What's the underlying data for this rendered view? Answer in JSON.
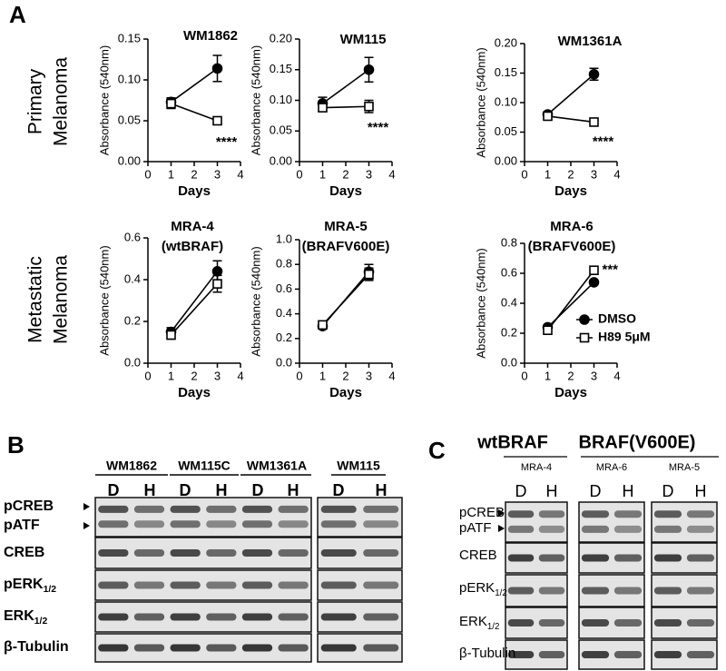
{
  "panel_labels": [
    "A",
    "B",
    "C"
  ],
  "row_labels": [
    [
      "Primary",
      "Melanoma"
    ],
    [
      "Metastatic",
      "Melanoma"
    ]
  ],
  "chart_data": [
    {
      "type": "line",
      "title": "WM1862",
      "xlabel": "Days",
      "ylabel": "Absorbance (540nm)",
      "x": [
        1,
        3
      ],
      "xlim": [
        0,
        4
      ],
      "xticks": [
        0,
        1,
        2,
        3,
        4
      ],
      "ylim": [
        0,
        0.15
      ],
      "yticks": [
        {
          "value": 0,
          "label": "0.00"
        },
        0.05,
        {
          "value": 0.1,
          "label": "0.10"
        },
        0.15
      ],
      "series": [
        {
          "name": "DMSO",
          "color": "#000000",
          "marker": "circle",
          "marker_fill": "#000000",
          "values": [
            0.073,
            0.114
          ],
          "errors": [
            0.005,
            0.016
          ]
        },
        {
          "name": "H89 5μM",
          "color": "#000000",
          "marker": "square",
          "marker_fill": "#ffffff",
          "values": [
            0.071,
            0.05
          ],
          "errors": [
            0.006,
            0.002
          ]
        }
      ],
      "annotation": "****"
    },
    {
      "type": "line",
      "title": "WM115",
      "xlabel": "Days",
      "ylabel": "Absorbance (540nm)",
      "x": [
        1,
        3
      ],
      "xlim": [
        0,
        4
      ],
      "xticks": [
        0,
        1,
        2,
        3,
        4
      ],
      "ylim": [
        0,
        0.2
      ],
      "yticks": [
        {
          "value": 0,
          "label": "0.00"
        },
        0.05,
        {
          "value": 0.1,
          "label": "0.10"
        },
        0.15,
        {
          "value": 0.2,
          "label": "0.20"
        }
      ],
      "series": [
        {
          "name": "DMSO",
          "color": "#000000",
          "marker": "circle",
          "marker_fill": "#000000",
          "values": [
            0.095,
            0.15
          ],
          "errors": [
            0.01,
            0.02
          ]
        },
        {
          "name": "H89 5μM",
          "color": "#000000",
          "marker": "square",
          "marker_fill": "#ffffff",
          "values": [
            0.088,
            0.09
          ],
          "errors": [
            0.005,
            0.01
          ]
        }
      ],
      "annotation": "****"
    },
    {
      "type": "line",
      "title": "WM1361A",
      "xlabel": "Days",
      "ylabel": "Absorbance (540nm)",
      "x": [
        1,
        3
      ],
      "xlim": [
        0,
        4
      ],
      "xticks": [
        0,
        1,
        2,
        3,
        4
      ],
      "ylim": [
        0,
        0.2
      ],
      "yticks": [
        {
          "value": 0,
          "label": "0.00"
        },
        0.05,
        {
          "value": 0.1,
          "label": "0.10"
        },
        0.15,
        {
          "value": 0.2,
          "label": "0.20"
        }
      ],
      "series": [
        {
          "name": "DMSO",
          "color": "#000000",
          "marker": "circle",
          "marker_fill": "#000000",
          "values": [
            0.08,
            0.148
          ],
          "errors": [
            0.004,
            0.01
          ]
        },
        {
          "name": "H89 5μM",
          "color": "#000000",
          "marker": "square",
          "marker_fill": "#ffffff",
          "values": [
            0.077,
            0.067
          ],
          "errors": [
            0.003,
            0.003
          ]
        }
      ],
      "annotation": "****"
    },
    {
      "type": "line",
      "title": "MRA-4",
      "subtitle": "(wtBRAF)",
      "xlabel": "Days",
      "ylabel": "Absorbance (540nm)",
      "x": [
        1,
        3
      ],
      "xlim": [
        0,
        4
      ],
      "xticks": [
        0,
        1,
        2,
        3,
        4
      ],
      "ylim": [
        0,
        0.6
      ],
      "yticks": [
        {
          "value": 0,
          "label": "0.0"
        },
        0.2,
        0.4,
        0.6
      ],
      "series": [
        {
          "name": "DMSO",
          "color": "#000000",
          "marker": "circle",
          "marker_fill": "#000000",
          "values": [
            0.15,
            0.44
          ],
          "errors": [
            0.02,
            0.05
          ]
        },
        {
          "name": "H89 5μM",
          "color": "#000000",
          "marker": "square",
          "marker_fill": "#ffffff",
          "values": [
            0.135,
            0.38
          ],
          "errors": [
            0.02,
            0.04
          ]
        }
      ]
    },
    {
      "type": "line",
      "title": "MRA-5",
      "subtitle": "(BRAFV600E)",
      "xlabel": "Days",
      "ylabel": "Absorbance (540nm)",
      "x": [
        1,
        3
      ],
      "xlim": [
        0,
        4
      ],
      "xticks": [
        0,
        1,
        2,
        3,
        4
      ],
      "ylim": [
        0,
        1
      ],
      "yticks": [
        {
          "value": 0,
          "label": "0.0"
        },
        0.2,
        0.4,
        0.6,
        0.8,
        {
          "value": 1,
          "label": "1.0"
        }
      ],
      "series": [
        {
          "name": "DMSO",
          "color": "#000000",
          "marker": "circle",
          "marker_fill": "#000000",
          "values": [
            0.3,
            0.74
          ],
          "errors": [
            0.02,
            0.06
          ]
        },
        {
          "name": "H89 5μM",
          "color": "#000000",
          "marker": "square",
          "marker_fill": "#ffffff",
          "values": [
            0.31,
            0.72
          ],
          "errors": [
            0.02,
            0.05
          ]
        }
      ]
    },
    {
      "type": "line",
      "title": "MRA-6",
      "subtitle": "(BRAFV600E)",
      "xlabel": "Days",
      "ylabel": "Absorbance (540nm)",
      "x": [
        1,
        3
      ],
      "xlim": [
        0,
        4
      ],
      "xticks": [
        0,
        1,
        2,
        3,
        4
      ],
      "ylim": [
        0,
        0.8
      ],
      "yticks": [
        {
          "value": 0,
          "label": "0.0"
        },
        0.2,
        0.4,
        0.6,
        0.8
      ],
      "series": [
        {
          "name": "DMSO",
          "color": "#000000",
          "marker": "circle",
          "marker_fill": "#000000",
          "values": [
            0.24,
            0.54
          ],
          "errors": [
            0.01,
            0.01
          ]
        },
        {
          "name": "H89 5μM",
          "color": "#000000",
          "marker": "square",
          "marker_fill": "#ffffff",
          "values": [
            0.22,
            0.62
          ],
          "errors": [
            0.01,
            0.02
          ]
        }
      ],
      "annotation": "***",
      "legend": "lower right"
    }
  ],
  "blot_b": {
    "cell_lines": [
      "WM1862",
      "WM115C",
      "WM1361A",
      "WM115"
    ],
    "lanes": [
      "D",
      "H"
    ],
    "rows": [
      {
        "text": "pCREB"
      },
      {
        "text": "pATF"
      },
      {
        "text": "CREB"
      },
      {
        "text": "pERK",
        "sub": "1/2"
      },
      {
        "text": "ERK",
        "sub": "1/2"
      },
      {
        "text": "β-Tubulin"
      }
    ]
  },
  "blot_c": {
    "groups": [
      "wtBRAF",
      "BRAF(V600E)"
    ],
    "cell_lines": [
      "MRA-4",
      "MRA-6",
      "MRA-5"
    ],
    "lanes": [
      "D",
      "H"
    ],
    "rows": [
      {
        "text": "pCREB"
      },
      {
        "text": "pATF"
      },
      {
        "text": "CREB"
      },
      {
        "text": "pERK",
        "sub": "1/2"
      },
      {
        "text": "ERK",
        "sub": "1/2"
      },
      {
        "text": "β-Tubulin"
      }
    ]
  }
}
